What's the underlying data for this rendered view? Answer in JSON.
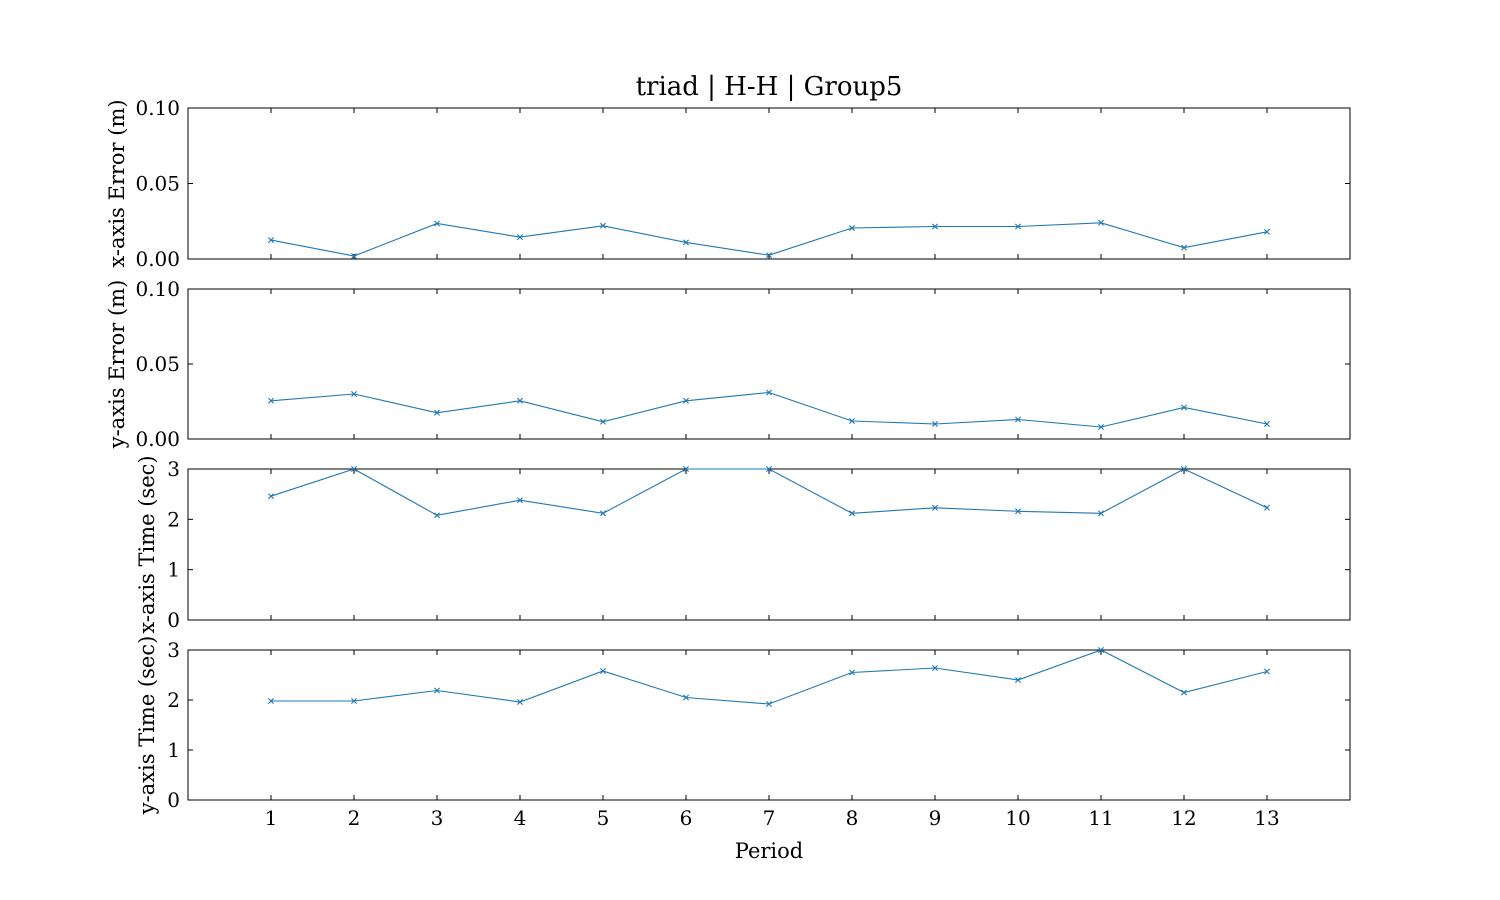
{
  "figure": {
    "title": "triad | H-H | Group5",
    "xlabel": "Period"
  },
  "chart_data": [
    {
      "type": "line",
      "ylabel": "x-axis Error (m)",
      "ylim": [
        0,
        0.1
      ],
      "yticks": [
        0.0,
        0.05,
        0.1
      ],
      "yticklabels": [
        "0.00",
        "0.05",
        "0.10"
      ],
      "xlim": [
        0,
        14
      ],
      "x": [
        1,
        2,
        3,
        4,
        5,
        6,
        7,
        8,
        9,
        10,
        11,
        12,
        13
      ],
      "xticklabels": [
        "1",
        "2",
        "3",
        "4",
        "5",
        "6",
        "7",
        "8",
        "9",
        "10",
        "11",
        "12",
        "13"
      ],
      "show_xticklabels": false,
      "values": [
        0.0125,
        0.002,
        0.0235,
        0.0145,
        0.022,
        0.011,
        0.0025,
        0.0205,
        0.0215,
        0.0215,
        0.024,
        0.0075,
        0.018
      ],
      "color": "#1f77b4",
      "marker": "x",
      "grid": false
    },
    {
      "type": "line",
      "ylabel": "y-axis Error (m)",
      "ylim": [
        0,
        0.1
      ],
      "yticks": [
        0.0,
        0.05,
        0.1
      ],
      "yticklabels": [
        "0.00",
        "0.05",
        "0.10"
      ],
      "xlim": [
        0,
        14
      ],
      "x": [
        1,
        2,
        3,
        4,
        5,
        6,
        7,
        8,
        9,
        10,
        11,
        12,
        13
      ],
      "xticklabels": [
        "1",
        "2",
        "3",
        "4",
        "5",
        "6",
        "7",
        "8",
        "9",
        "10",
        "11",
        "12",
        "13"
      ],
      "show_xticklabels": false,
      "values": [
        0.0255,
        0.03,
        0.0175,
        0.0255,
        0.0115,
        0.0255,
        0.031,
        0.012,
        0.01,
        0.013,
        0.008,
        0.021,
        0.01
      ],
      "color": "#1f77b4",
      "marker": "x",
      "grid": false
    },
    {
      "type": "line",
      "ylabel": "x-axis Time (sec)",
      "ylim": [
        0,
        3
      ],
      "yticks": [
        0,
        1,
        2,
        3
      ],
      "yticklabels": [
        "0",
        "1",
        "2",
        "3"
      ],
      "xlim": [
        0,
        14
      ],
      "x": [
        1,
        2,
        3,
        4,
        5,
        6,
        7,
        8,
        9,
        10,
        11,
        12,
        13
      ],
      "xticklabels": [
        "1",
        "2",
        "3",
        "4",
        "5",
        "6",
        "7",
        "8",
        "9",
        "10",
        "11",
        "12",
        "13"
      ],
      "show_xticklabels": false,
      "values": [
        2.46,
        3.0,
        2.08,
        2.38,
        2.12,
        3.0,
        3.0,
        2.12,
        2.23,
        2.16,
        2.12,
        3.0,
        2.23
      ],
      "color": "#1f77b4",
      "marker": "x",
      "grid": false
    },
    {
      "type": "line",
      "ylabel": "y-axis Time (sec)",
      "ylim": [
        0,
        3
      ],
      "yticks": [
        0,
        1,
        2,
        3
      ],
      "yticklabels": [
        "0",
        "1",
        "2",
        "3"
      ],
      "xlim": [
        0,
        14
      ],
      "x": [
        1,
        2,
        3,
        4,
        5,
        6,
        7,
        8,
        9,
        10,
        11,
        12,
        13
      ],
      "xticklabels": [
        "1",
        "2",
        "3",
        "4",
        "5",
        "6",
        "7",
        "8",
        "9",
        "10",
        "11",
        "12",
        "13"
      ],
      "show_xticklabels": true,
      "values": [
        1.98,
        1.98,
        2.19,
        1.96,
        2.58,
        2.05,
        1.92,
        2.55,
        2.64,
        2.4,
        3.0,
        2.15,
        2.57
      ],
      "color": "#1f77b4",
      "marker": "x",
      "grid": false
    }
  ]
}
